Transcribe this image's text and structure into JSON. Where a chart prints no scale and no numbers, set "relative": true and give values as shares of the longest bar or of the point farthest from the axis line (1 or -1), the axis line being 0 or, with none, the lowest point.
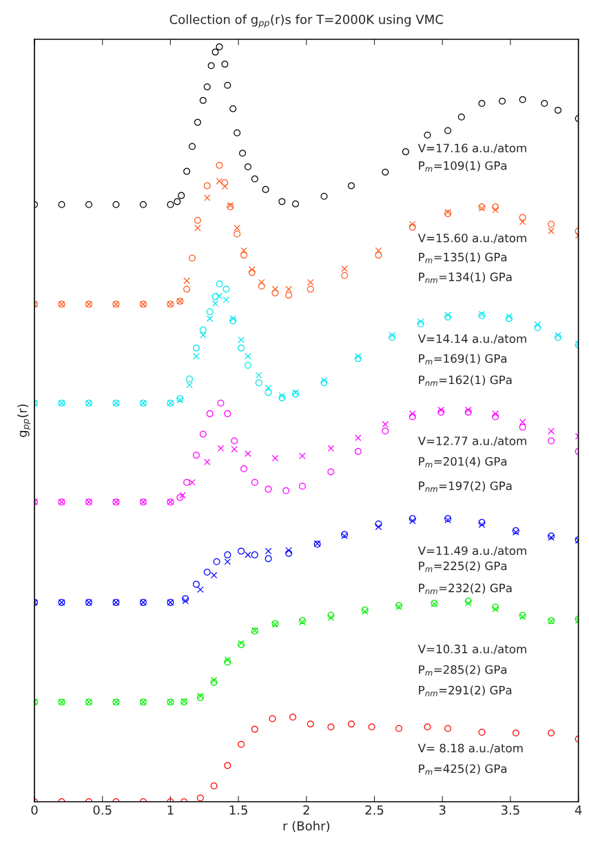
{
  "chart_data": {
    "type": "scatter",
    "title": "Collection of g$_{pp}$(r)s for T=2000K using VMC",
    "xlabel": "r (Bohr)",
    "ylabel": "g$_{pp}$(r)",
    "relative": true,
    "xlim": [
      0,
      4
    ],
    "xticks": [
      0,
      0.5,
      1,
      1.5,
      2,
      2.5,
      3,
      3.5,
      4
    ],
    "grid": false,
    "legend": false,
    "tick_labels": "x",
    "series": [
      {
        "color": "#000000",
        "marker": "circle",
        "x": [
          0,
          0.2,
          0.4,
          0.6,
          0.8,
          1.0,
          1.05,
          1.08,
          1.12,
          1.16,
          1.2,
          1.24,
          1.27,
          1.3,
          1.33,
          1.36,
          1.4,
          1.42,
          1.46,
          1.49,
          1.53,
          1.57,
          1.62,
          1.7,
          1.82,
          1.92,
          2.13,
          2.33,
          2.58,
          2.73,
          2.89,
          3.04,
          3.14,
          3.29,
          3.44,
          3.59,
          3.75,
          3.85,
          4.0
        ],
        "values": [
          0.791,
          0.791,
          0.791,
          0.791,
          0.791,
          0.791,
          0.795,
          0.803,
          0.835,
          0.868,
          0.9,
          0.929,
          0.947,
          0.975,
          0.993,
          1.0,
          0.977,
          0.949,
          0.918,
          0.886,
          0.859,
          0.841,
          0.825,
          0.811,
          0.795,
          0.792,
          0.802,
          0.816,
          0.834,
          0.861,
          0.883,
          0.889,
          0.907,
          0.925,
          0.928,
          0.93,
          0.925,
          0.916,
          0.905
        ]
      },
      {
        "color": "#ff5a1e",
        "marker": "circle",
        "x": [
          0,
          0.2,
          0.4,
          0.6,
          0.8,
          1.0,
          1.07,
          1.12,
          1.16,
          1.2,
          1.27,
          1.36,
          1.4,
          1.44,
          1.49,
          1.54,
          1.6,
          1.67,
          1.77,
          1.87,
          2.03,
          2.28,
          2.53,
          2.78,
          3.04,
          3.29,
          3.39,
          3.59,
          3.8,
          4.0
        ],
        "values": [
          0.659,
          0.659,
          0.659,
          0.659,
          0.659,
          0.659,
          0.663,
          0.679,
          0.72,
          0.77,
          0.816,
          0.843,
          0.82,
          0.788,
          0.752,
          0.724,
          0.701,
          0.683,
          0.674,
          0.671,
          0.679,
          0.697,
          0.724,
          0.761,
          0.779,
          0.788,
          0.788,
          0.774,
          0.765,
          0.756
        ]
      },
      {
        "color": "#ff5a1e",
        "marker": "cross",
        "x": [
          0,
          0.2,
          0.4,
          0.6,
          0.8,
          1.0,
          1.07,
          1.12,
          1.2,
          1.27,
          1.36,
          1.4,
          1.44,
          1.49,
          1.54,
          1.6,
          1.67,
          1.77,
          1.87,
          2.03,
          2.28,
          2.53,
          2.78,
          3.04,
          3.29,
          3.39,
          3.59,
          3.8,
          4.0
        ],
        "values": [
          0.659,
          0.659,
          0.659,
          0.659,
          0.659,
          0.659,
          0.663,
          0.69,
          0.76,
          0.8,
          0.822,
          0.815,
          0.79,
          0.76,
          0.73,
          0.705,
          0.688,
          0.679,
          0.679,
          0.688,
          0.706,
          0.73,
          0.765,
          0.781,
          0.786,
          0.784,
          0.768,
          0.756,
          0.75
        ]
      },
      {
        "color": "#00e5ee",
        "marker": "circle",
        "x": [
          0,
          0.2,
          0.4,
          0.6,
          0.8,
          1.0,
          1.07,
          1.14,
          1.19,
          1.24,
          1.29,
          1.33,
          1.36,
          1.41,
          1.46,
          1.52,
          1.57,
          1.65,
          1.72,
          1.82,
          1.92,
          2.13,
          2.38,
          2.63,
          2.84,
          3.04,
          3.29,
          3.49,
          3.7,
          3.85,
          4.0
        ],
        "values": [
          0.528,
          0.528,
          0.528,
          0.528,
          0.528,
          0.528,
          0.534,
          0.56,
          0.601,
          0.625,
          0.649,
          0.669,
          0.686,
          0.679,
          0.637,
          0.601,
          0.578,
          0.555,
          0.542,
          0.535,
          0.54,
          0.555,
          0.587,
          0.615,
          0.633,
          0.642,
          0.644,
          0.64,
          0.628,
          0.615,
          0.605
        ]
      },
      {
        "color": "#00e5ee",
        "marker": "cross",
        "x": [
          0,
          0.2,
          0.4,
          0.6,
          0.8,
          1.0,
          1.07,
          1.14,
          1.19,
          1.24,
          1.29,
          1.33,
          1.36,
          1.41,
          1.46,
          1.52,
          1.57,
          1.65,
          1.72,
          1.82,
          1.92,
          2.13,
          2.38,
          2.63,
          2.84,
          3.04,
          3.29,
          3.49,
          3.7,
          3.85,
          4.0
        ],
        "values": [
          0.528,
          0.528,
          0.528,
          0.528,
          0.528,
          0.528,
          0.532,
          0.552,
          0.59,
          0.618,
          0.64,
          0.66,
          0.67,
          0.665,
          0.64,
          0.612,
          0.59,
          0.565,
          0.548,
          0.538,
          0.542,
          0.558,
          0.59,
          0.618,
          0.636,
          0.645,
          0.646,
          0.643,
          0.632,
          0.618,
          0.607
        ]
      },
      {
        "color": "#ff00ff",
        "marker": "circle",
        "x": [
          0,
          0.2,
          0.4,
          0.6,
          0.8,
          1.0,
          1.07,
          1.12,
          1.19,
          1.24,
          1.29,
          1.37,
          1.42,
          1.47,
          1.54,
          1.62,
          1.72,
          1.85,
          1.97,
          2.18,
          2.38,
          2.58,
          2.78,
          2.99,
          3.19,
          3.39,
          3.59,
          3.8,
          4.0
        ],
        "values": [
          0.397,
          0.397,
          0.397,
          0.397,
          0.397,
          0.397,
          0.403,
          0.423,
          0.459,
          0.487,
          0.514,
          0.528,
          0.514,
          0.478,
          0.441,
          0.423,
          0.414,
          0.412,
          0.418,
          0.437,
          0.464,
          0.491,
          0.51,
          0.516,
          0.516,
          0.51,
          0.496,
          0.478,
          0.464
        ]
      },
      {
        "color": "#ff00ff",
        "marker": "cross",
        "x": [
          0,
          0.2,
          0.4,
          0.6,
          0.8,
          1.0,
          1.09,
          1.16,
          1.27,
          1.37,
          1.47,
          1.57,
          1.77,
          1.97,
          2.18,
          2.38,
          2.58,
          2.78,
          2.99,
          3.19,
          3.39,
          3.59,
          3.8,
          4.0
        ],
        "values": [
          0.397,
          0.397,
          0.397,
          0.397,
          0.397,
          0.397,
          0.406,
          0.423,
          0.45,
          0.468,
          0.467,
          0.461,
          0.455,
          0.458,
          0.468,
          0.482,
          0.5,
          0.514,
          0.519,
          0.519,
          0.514,
          0.503,
          0.491,
          0.484
        ]
      },
      {
        "color": "#0000ff",
        "marker": "circle",
        "x": [
          0,
          0.2,
          0.4,
          0.6,
          0.8,
          1.0,
          1.11,
          1.19,
          1.27,
          1.34,
          1.42,
          1.52,
          1.62,
          1.72,
          1.87,
          2.08,
          2.28,
          2.53,
          2.78,
          3.04,
          3.29,
          3.54,
          3.8,
          4.0
        ],
        "values": [
          0.264,
          0.264,
          0.264,
          0.264,
          0.264,
          0.264,
          0.269,
          0.288,
          0.304,
          0.318,
          0.327,
          0.332,
          0.327,
          0.322,
          0.329,
          0.341,
          0.354,
          0.368,
          0.375,
          0.375,
          0.37,
          0.359,
          0.352,
          0.347
        ]
      },
      {
        "color": "#0000ff",
        "marker": "cross",
        "x": [
          0,
          0.2,
          0.4,
          0.6,
          0.8,
          1.0,
          1.11,
          1.22,
          1.32,
          1.42,
          1.57,
          1.72,
          1.87,
          2.08,
          2.28,
          2.53,
          2.78,
          3.04,
          3.29,
          3.54,
          3.8,
          4.0
        ],
        "values": [
          0.264,
          0.264,
          0.264,
          0.264,
          0.264,
          0.264,
          0.266,
          0.281,
          0.3,
          0.318,
          0.327,
          0.332,
          0.333,
          0.342,
          0.352,
          0.364,
          0.372,
          0.373,
          0.367,
          0.357,
          0.35,
          0.346
        ]
      },
      {
        "color": "#00ee00",
        "marker": "circle",
        "x": [
          0,
          0.2,
          0.4,
          0.6,
          0.8,
          1.0,
          1.1,
          1.22,
          1.32,
          1.42,
          1.52,
          1.62,
          1.77,
          1.97,
          2.18,
          2.43,
          2.68,
          2.94,
          3.19,
          3.39,
          3.59,
          3.8,
          4.0
        ],
        "values": [
          0.132,
          0.132,
          0.132,
          0.132,
          0.132,
          0.132,
          0.132,
          0.138,
          0.158,
          0.185,
          0.208,
          0.226,
          0.236,
          0.24,
          0.247,
          0.254,
          0.26,
          0.263,
          0.266,
          0.258,
          0.247,
          0.24,
          0.242
        ]
      },
      {
        "color": "#00ee00",
        "marker": "cross",
        "x": [
          0,
          0.2,
          0.4,
          0.6,
          0.8,
          1.0,
          1.1,
          1.22,
          1.32,
          1.42,
          1.52,
          1.62,
          1.77,
          1.97,
          2.18,
          2.43,
          2.68,
          2.94,
          3.19,
          3.39,
          3.59,
          3.8,
          4.0
        ],
        "values": [
          0.132,
          0.132,
          0.132,
          0.132,
          0.132,
          0.132,
          0.133,
          0.14,
          0.161,
          0.188,
          0.21,
          0.227,
          0.235,
          0.238,
          0.244,
          0.252,
          0.258,
          0.262,
          0.263,
          0.255,
          0.245,
          0.239,
          0.24
        ]
      },
      {
        "color": "#ff0000",
        "marker": "circle",
        "x": [
          0,
          0.2,
          0.4,
          0.6,
          0.8,
          1.0,
          1.1,
          1.22,
          1.32,
          1.42,
          1.52,
          1.62,
          1.75,
          1.9,
          2.03,
          2.18,
          2.33,
          2.48,
          2.68,
          2.89,
          3.04,
          3.29,
          3.54,
          3.8,
          4.0
        ],
        "values": [
          0,
          0,
          0,
          0,
          0,
          0,
          0,
          0.005,
          0.021,
          0.048,
          0.076,
          0.096,
          0.11,
          0.112,
          0.103,
          0.099,
          0.103,
          0.099,
          0.097,
          0.099,
          0.097,
          0.092,
          0.091,
          0.091,
          0.083
        ]
      }
    ],
    "annotations": [
      "V=17.16 a.u./atom",
      "P$_{m}$=109(1) GPa",
      "V=15.60 a.u./atom",
      "P$_{m}$=135(1) GPa",
      "P$_{nm}$=134(1) GPa",
      "V=14.14 a.u./atom",
      "P$_{m}$=169(1) GPa",
      "P$_{nm}$=162(1) GPa",
      "V=12.77 a.u./atom",
      "P$_{m}$=201(4) GPa",
      "P$_{nm}$=197(2) GPa",
      "V=11.49 a.u./atom",
      "P$_{m}$=225(2) GPa",
      "P$_{nm}$=232(2) GPa",
      "V=10.31 a.u./atom",
      "P$_{m}$=285(2) GPa",
      "P$_{nm}$=291(2) GPa",
      "V= 8.18 a.u./atom",
      "P$_{m}$=425(2) GPa"
    ]
  }
}
